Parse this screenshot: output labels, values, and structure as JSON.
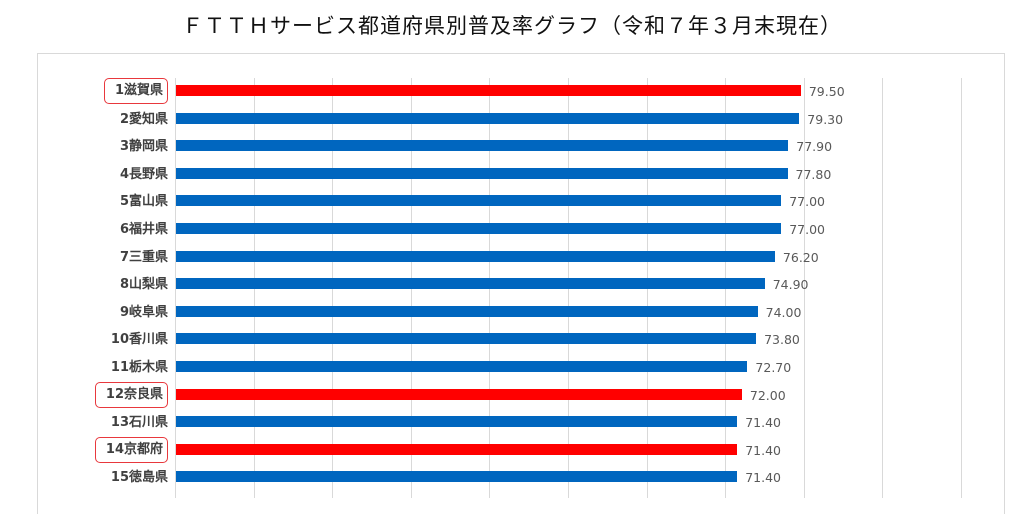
{
  "title": "ＦＴＴＨサービス都道府県別普及率グラフ（令和７年３月末現在）",
  "colors": {
    "highlight": "#ff0000",
    "normal": "#0066bf",
    "grid": "#d9d9d9"
  },
  "chart_data": {
    "type": "bar",
    "orientation": "horizontal",
    "title": "ＦＴＴＨサービス都道府県別普及率グラフ（令和７年３月末現在）",
    "xlabel": "",
    "ylabel": "",
    "xlim": [
      0,
      100
    ],
    "grid": true,
    "gridline_interval": 10,
    "legend": "none",
    "categories": [
      "1滋賀県",
      "2愛知県",
      "3静岡県",
      "4長野県",
      "5富山県",
      "6福井県",
      "7三重県",
      "8山梨県",
      "9岐阜県",
      "10香川県",
      "11栃木県",
      "12奈良県",
      "13石川県",
      "14京都府",
      "15徳島県"
    ],
    "values": [
      79.5,
      79.3,
      77.9,
      77.8,
      77.0,
      77.0,
      76.2,
      74.9,
      74.0,
      73.8,
      72.7,
      72.0,
      71.4,
      71.4,
      71.4
    ],
    "value_labels": [
      "79.50",
      "79.30",
      "77.90",
      "77.80",
      "77.00",
      "77.00",
      "76.20",
      "74.90",
      "74.00",
      "73.80",
      "72.70",
      "72.00",
      "71.40",
      "71.40",
      "71.40"
    ],
    "highlighted": [
      true,
      false,
      false,
      false,
      false,
      false,
      false,
      false,
      false,
      false,
      false,
      true,
      false,
      true,
      false
    ]
  }
}
